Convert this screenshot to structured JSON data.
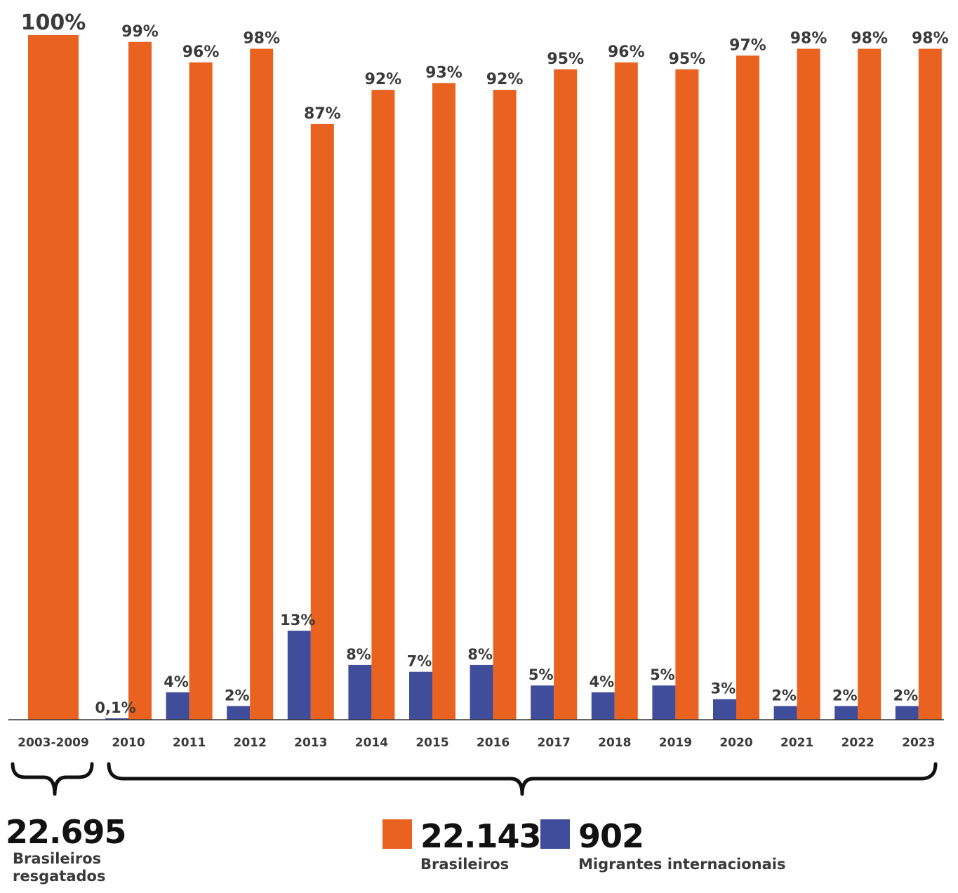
{
  "colors": {
    "brazilians": "#e9621f",
    "migrants": "#3f4d9b",
    "text": "#3a3a3a",
    "axis": "#333333"
  },
  "chart_data": {
    "type": "bar",
    "categories": [
      "2003-2009",
      "2010",
      "2011",
      "2012",
      "2013",
      "2014",
      "2015",
      "2016",
      "2017",
      "2018",
      "2019",
      "2020",
      "2021",
      "2022",
      "2023"
    ],
    "series": [
      {
        "name": "Brasileiros",
        "values": [
          100,
          99,
          96,
          98,
          87,
          92,
          93,
          92,
          95,
          96,
          95,
          97,
          98,
          98,
          98
        ],
        "labels": [
          "100%",
          "99%",
          "96%",
          "98%",
          "87%",
          "92%",
          "93%",
          "92%",
          "95%",
          "96%",
          "95%",
          "97%",
          "98%",
          "98%",
          "98%"
        ]
      },
      {
        "name": "Migrantes internacionais",
        "values": [
          null,
          0.1,
          4,
          2,
          13,
          8,
          7,
          8,
          5,
          4,
          5,
          3,
          2,
          2,
          2
        ],
        "labels": [
          "",
          "0,1%",
          "4%",
          "2%",
          "13%",
          "8%",
          "7%",
          "8%",
          "5%",
          "4%",
          "5%",
          "3%",
          "2%",
          "2%",
          "2%"
        ]
      }
    ],
    "ylim": [
      0,
      100
    ],
    "title": "",
    "xlabel": "",
    "ylabel": ""
  },
  "summary": {
    "period1": {
      "value": "22.695",
      "caption_line1": "Brasileiros",
      "caption_line2": "resgatados"
    },
    "period2": {
      "brazilians": {
        "value": "22.143",
        "caption": "Brasileiros"
      },
      "migrants": {
        "value": "902",
        "caption": "Migrantes internacionais"
      }
    }
  }
}
